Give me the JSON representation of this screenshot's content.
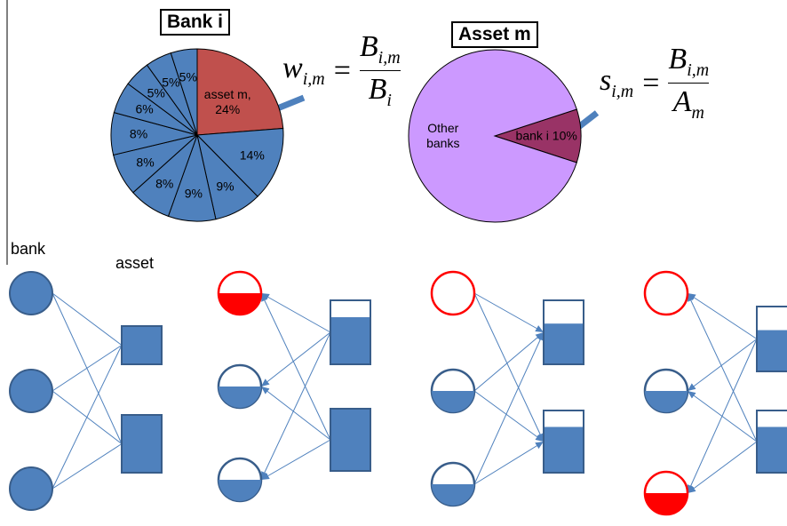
{
  "pies": [
    {
      "title": "Bank i",
      "slices": [
        {
          "value": 24,
          "label": "asset m, 24%",
          "color": "#c0504d"
        },
        {
          "value": 14,
          "label": "14%",
          "color": "#4f81bd"
        },
        {
          "value": 9,
          "label": "9%",
          "color": "#4f81bd"
        },
        {
          "value": 9,
          "label": "9%",
          "color": "#4f81bd"
        },
        {
          "value": 8,
          "label": "8%",
          "color": "#4f81bd"
        },
        {
          "value": 8,
          "label": "8%",
          "color": "#4f81bd"
        },
        {
          "value": 8,
          "label": "8%",
          "color": "#4f81bd"
        },
        {
          "value": 6,
          "label": "6%",
          "color": "#4f81bd"
        },
        {
          "value": 5,
          "label": "5%",
          "color": "#4f81bd"
        },
        {
          "value": 5,
          "label": "5%",
          "color": "#4f81bd"
        },
        {
          "value": 5,
          "label": "5%",
          "color": "#4f81bd"
        }
      ]
    },
    {
      "title": "Asset m",
      "slices": [
        {
          "value": 10,
          "label": "bank i 10%",
          "color": "#993366"
        },
        {
          "value": 90,
          "label": "Other banks",
          "color": "#cc99ff"
        }
      ]
    }
  ],
  "formulas": [
    {
      "lhs": "w",
      "lhs_sub": "i,m",
      "equals": "=",
      "num": "B",
      "num_sub": "i,m",
      "den": "B",
      "den_sub": "i"
    },
    {
      "lhs": "s",
      "lhs_sub": "i,m",
      "equals": "=",
      "num": "B",
      "num_sub": "i,m",
      "den": "A",
      "den_sub": "m"
    }
  ],
  "labels": {
    "bank": "bank",
    "asset": "asset"
  }
}
